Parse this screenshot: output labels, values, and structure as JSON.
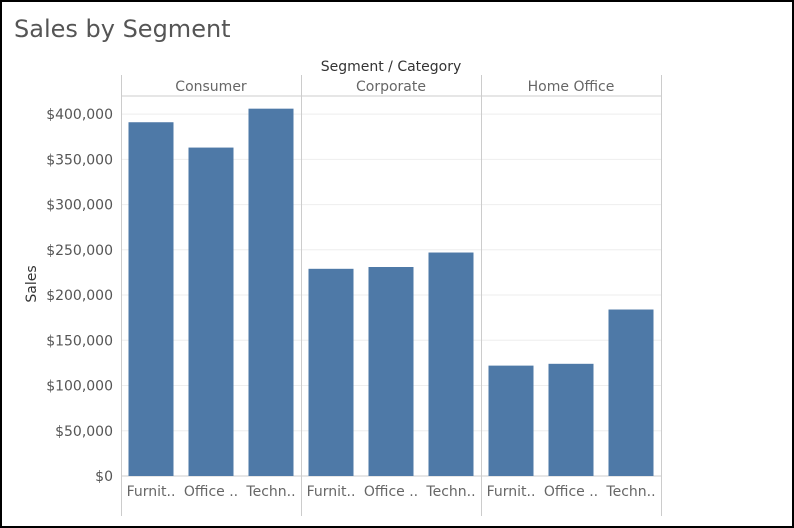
{
  "title": "Sales by Segment",
  "chart_data": {
    "type": "bar",
    "title": "Sales by Segment",
    "column_header": "Segment / Category",
    "ylabel": "Sales",
    "ylim": [
      0,
      420000
    ],
    "y_ticks": [
      0,
      50000,
      100000,
      150000,
      200000,
      250000,
      300000,
      350000,
      400000
    ],
    "y_tick_labels": [
      "$0",
      "$50,000",
      "$100,000",
      "$150,000",
      "$200,000",
      "$250,000",
      "$300,000",
      "$350,000",
      "$400,000"
    ],
    "bar_color": "#4e79a7",
    "grid": true,
    "legend": "none",
    "panels": [
      {
        "segment": "Consumer",
        "categories": [
          "Furnit..",
          "Office ..",
          "Techn.."
        ],
        "values": [
          391000,
          363000,
          406000
        ]
      },
      {
        "segment": "Corporate",
        "categories": [
          "Furnit..",
          "Office ..",
          "Techn.."
        ],
        "values": [
          229000,
          231000,
          247000
        ]
      },
      {
        "segment": "Home Office",
        "categories": [
          "Furnit..",
          "Office ..",
          "Techn.."
        ],
        "values": [
          122000,
          124000,
          184000
        ]
      }
    ]
  }
}
